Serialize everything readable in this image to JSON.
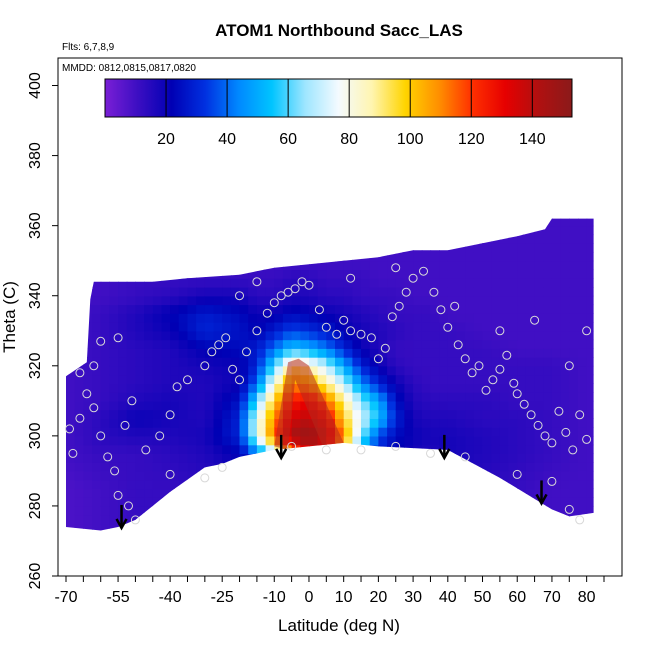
{
  "chart_data": {
    "type": "heatmap",
    "title": "ATOM1 Northbound Sacc_LAS",
    "annotations": [
      "Flts: 6,7,8,9",
      "MMDD: 0812,0815,0817,0820"
    ],
    "xlabel": "Latitude (deg N)",
    "ylabel": "Theta (C)",
    "xlim": [
      -70,
      85
    ],
    "ylim": [
      260,
      405
    ],
    "x_ticks": [
      "-70",
      "-55",
      "-40",
      "-25",
      "-10",
      "0",
      "10",
      "20",
      "30",
      "40",
      "50",
      "60",
      "70",
      "80"
    ],
    "x_tick_values": [
      -70,
      -55,
      -40,
      -25,
      -10,
      0,
      10,
      20,
      30,
      40,
      50,
      60,
      70,
      80
    ],
    "y_ticks": [
      "260",
      "280",
      "300",
      "320",
      "340",
      "360",
      "380",
      "400"
    ],
    "y_tick_values": [
      260,
      280,
      300,
      320,
      340,
      360,
      380,
      400
    ],
    "colorbar": {
      "range": [
        0,
        153
      ],
      "ticks": [
        "20",
        "40",
        "60",
        "80",
        "100",
        "120",
        "140"
      ],
      "tick_values": [
        20,
        40,
        60,
        80,
        100,
        120,
        140
      ],
      "colors": [
        "#7a1fd6",
        "#3b0ec2",
        "#0000b4",
        "#0030e0",
        "#0088ff",
        "#00c4ff",
        "#9ee6ff",
        "#f4faff",
        "#fff5b0",
        "#ffd400",
        "#ff9000",
        "#ff3000",
        "#e60000",
        "#b01010",
        "#8b1a1a"
      ]
    },
    "field_grid": {
      "x": [
        -70,
        -60,
        -50,
        -40,
        -30,
        -20,
        -15,
        -10,
        -5,
        0,
        5,
        10,
        15,
        20,
        25,
        30,
        35,
        40,
        50,
        60,
        70,
        80
      ],
      "y": [
        275,
        285,
        295,
        300,
        305,
        310,
        315,
        320,
        325,
        330,
        335,
        340,
        345,
        350,
        362
      ],
      "values": [
        [
          8,
          10,
          12,
          12,
          14,
          14,
          14,
          16,
          16,
          16,
          16,
          16,
          14,
          14,
          14,
          14,
          14,
          14,
          14,
          12,
          10,
          10
        ],
        [
          8,
          10,
          12,
          12,
          14,
          16,
          16,
          18,
          20,
          20,
          20,
          18,
          16,
          16,
          16,
          16,
          16,
          16,
          14,
          12,
          10,
          10
        ],
        [
          10,
          12,
          12,
          14,
          16,
          22,
          40,
          70,
          110,
          130,
          125,
          90,
          45,
          30,
          22,
          18,
          16,
          18,
          16,
          14,
          12,
          10
        ],
        [
          10,
          14,
          16,
          16,
          18,
          30,
          75,
          115,
          145,
          150,
          140,
          110,
          65,
          35,
          24,
          20,
          18,
          18,
          16,
          14,
          12,
          10
        ],
        [
          10,
          14,
          20,
          18,
          16,
          30,
          75,
          110,
          135,
          140,
          130,
          100,
          72,
          55,
          30,
          18,
          16,
          16,
          14,
          14,
          12,
          10
        ],
        [
          10,
          12,
          16,
          18,
          16,
          26,
          60,
          100,
          125,
          130,
          115,
          90,
          65,
          50,
          26,
          16,
          14,
          14,
          14,
          12,
          12,
          10
        ],
        [
          10,
          12,
          14,
          16,
          16,
          20,
          40,
          80,
          110,
          105,
          90,
          70,
          45,
          30,
          20,
          14,
          12,
          12,
          12,
          12,
          12,
          10
        ],
        [
          10,
          12,
          14,
          16,
          18,
          20,
          30,
          60,
          90,
          85,
          70,
          50,
          30,
          20,
          14,
          12,
          12,
          12,
          12,
          12,
          12,
          10
        ],
        [
          10,
          12,
          14,
          16,
          22,
          24,
          28,
          40,
          55,
          50,
          42,
          30,
          20,
          16,
          12,
          12,
          12,
          12,
          12,
          10,
          10,
          10
        ],
        [
          10,
          12,
          16,
          20,
          30,
          26,
          22,
          28,
          35,
          32,
          28,
          22,
          18,
          16,
          14,
          12,
          12,
          12,
          10,
          10,
          10,
          10
        ],
        [
          10,
          12,
          16,
          22,
          28,
          24,
          20,
          20,
          24,
          22,
          20,
          18,
          16,
          14,
          12,
          12,
          12,
          10,
          10,
          10,
          10,
          10
        ],
        [
          10,
          10,
          12,
          14,
          18,
          18,
          14,
          14,
          16,
          16,
          14,
          14,
          12,
          12,
          12,
          10,
          10,
          10,
          10,
          10,
          10,
          10
        ],
        [
          10,
          10,
          12,
          12,
          12,
          12,
          12,
          12,
          14,
          14,
          12,
          12,
          12,
          10,
          10,
          10,
          10,
          10,
          10,
          10,
          10,
          10
        ],
        [
          10,
          10,
          10,
          10,
          10,
          10,
          10,
          10,
          10,
          10,
          10,
          10,
          10,
          10,
          10,
          10,
          10,
          10,
          10,
          10,
          10,
          10
        ],
        [
          10,
          10,
          10,
          10,
          10,
          10,
          10,
          10,
          10,
          10,
          10,
          10,
          10,
          10,
          10,
          10,
          10,
          10,
          10,
          10,
          10,
          10
        ]
      ]
    },
    "domain_top": [
      [
        -70,
        317
      ],
      [
        -64,
        321
      ],
      [
        -63,
        339
      ],
      [
        -62,
        344
      ],
      [
        -55,
        344
      ],
      [
        -45,
        344
      ],
      [
        -35,
        345
      ],
      [
        -20,
        346
      ],
      [
        -10,
        348
      ],
      [
        0,
        349
      ],
      [
        10,
        350
      ],
      [
        20,
        351
      ],
      [
        30,
        353
      ],
      [
        40,
        353
      ],
      [
        50,
        355
      ],
      [
        60,
        357
      ],
      [
        68,
        359
      ],
      [
        70,
        362
      ],
      [
        80,
        362
      ],
      [
        82,
        362
      ]
    ],
    "domain_bottom": [
      [
        82,
        278
      ],
      [
        75,
        277
      ],
      [
        70,
        279
      ],
      [
        55,
        288
      ],
      [
        40,
        296
      ],
      [
        20,
        297
      ],
      [
        10,
        298
      ],
      [
        -10,
        296
      ],
      [
        -20,
        294
      ],
      [
        -25,
        292
      ],
      [
        -30,
        291
      ],
      [
        -40,
        284
      ],
      [
        -50,
        276
      ],
      [
        -55,
        274
      ],
      [
        -60,
        273
      ],
      [
        -70,
        274
      ]
    ],
    "core_band": [
      [
        -10,
        297
      ],
      [
        -6,
        321
      ],
      [
        -3,
        322
      ],
      [
        0,
        320
      ],
      [
        10,
        298
      ],
      [
        4,
        297
      ],
      [
        -4,
        316
      ],
      [
        -6,
        296
      ]
    ],
    "samples": [
      [
        -69,
        302
      ],
      [
        -68,
        295
      ],
      [
        -66,
        305
      ],
      [
        -62,
        308
      ],
      [
        -60,
        300
      ],
      [
        -58,
        294
      ],
      [
        -56,
        290
      ],
      [
        -55,
        283
      ],
      [
        -52,
        280
      ],
      [
        -50,
        276
      ],
      [
        -66,
        318
      ],
      [
        -64,
        312
      ],
      [
        -62,
        320
      ],
      [
        -60,
        327
      ],
      [
        -55,
        328
      ],
      [
        -53,
        303
      ],
      [
        -51,
        310
      ],
      [
        -47,
        296
      ],
      [
        -43,
        300
      ],
      [
        -40,
        306
      ],
      [
        -38,
        314
      ],
      [
        -35,
        316
      ],
      [
        -30,
        320
      ],
      [
        -28,
        324
      ],
      [
        -26,
        326
      ],
      [
        -24,
        328
      ],
      [
        -22,
        319
      ],
      [
        -20,
        316
      ],
      [
        -18,
        324
      ],
      [
        -15,
        330
      ],
      [
        -12,
        335
      ],
      [
        -10,
        338
      ],
      [
        -8,
        340
      ],
      [
        -6,
        341
      ],
      [
        -4,
        342
      ],
      [
        -2,
        344
      ],
      [
        0,
        343
      ],
      [
        3,
        336
      ],
      [
        5,
        331
      ],
      [
        8,
        329
      ],
      [
        10,
        333
      ],
      [
        12,
        330
      ],
      [
        15,
        329
      ],
      [
        18,
        328
      ],
      [
        20,
        322
      ],
      [
        22,
        325
      ],
      [
        24,
        334
      ],
      [
        26,
        337
      ],
      [
        28,
        341
      ],
      [
        30,
        345
      ],
      [
        33,
        347
      ],
      [
        36,
        341
      ],
      [
        38,
        336
      ],
      [
        40,
        331
      ],
      [
        43,
        326
      ],
      [
        45,
        322
      ],
      [
        47,
        318
      ],
      [
        49,
        320
      ],
      [
        51,
        313
      ],
      [
        53,
        316
      ],
      [
        55,
        319
      ],
      [
        57,
        323
      ],
      [
        59,
        315
      ],
      [
        60,
        312
      ],
      [
        62,
        309
      ],
      [
        64,
        306
      ],
      [
        66,
        303
      ],
      [
        68,
        300
      ],
      [
        70,
        298
      ],
      [
        72,
        307
      ],
      [
        74,
        301
      ],
      [
        76,
        296
      ],
      [
        78,
        306
      ],
      [
        80,
        299
      ],
      [
        -40,
        289
      ],
      [
        -30,
        288
      ],
      [
        -25,
        291
      ],
      [
        -5,
        297
      ],
      [
        5,
        296
      ],
      [
        15,
        296
      ],
      [
        25,
        297
      ],
      [
        35,
        295
      ],
      [
        45,
        294
      ],
      [
        60,
        289
      ],
      [
        70,
        287
      ],
      [
        75,
        279
      ],
      [
        78,
        276
      ],
      [
        -15,
        344
      ],
      [
        -20,
        340
      ],
      [
        12,
        345
      ],
      [
        25,
        348
      ],
      [
        42,
        337
      ],
      [
        55,
        330
      ],
      [
        65,
        333
      ],
      [
        75,
        320
      ],
      [
        80,
        330
      ]
    ],
    "arrows": [
      [
        -54,
        278
      ],
      [
        -8,
        298
      ],
      [
        39,
        298
      ],
      [
        67,
        285
      ]
    ]
  }
}
